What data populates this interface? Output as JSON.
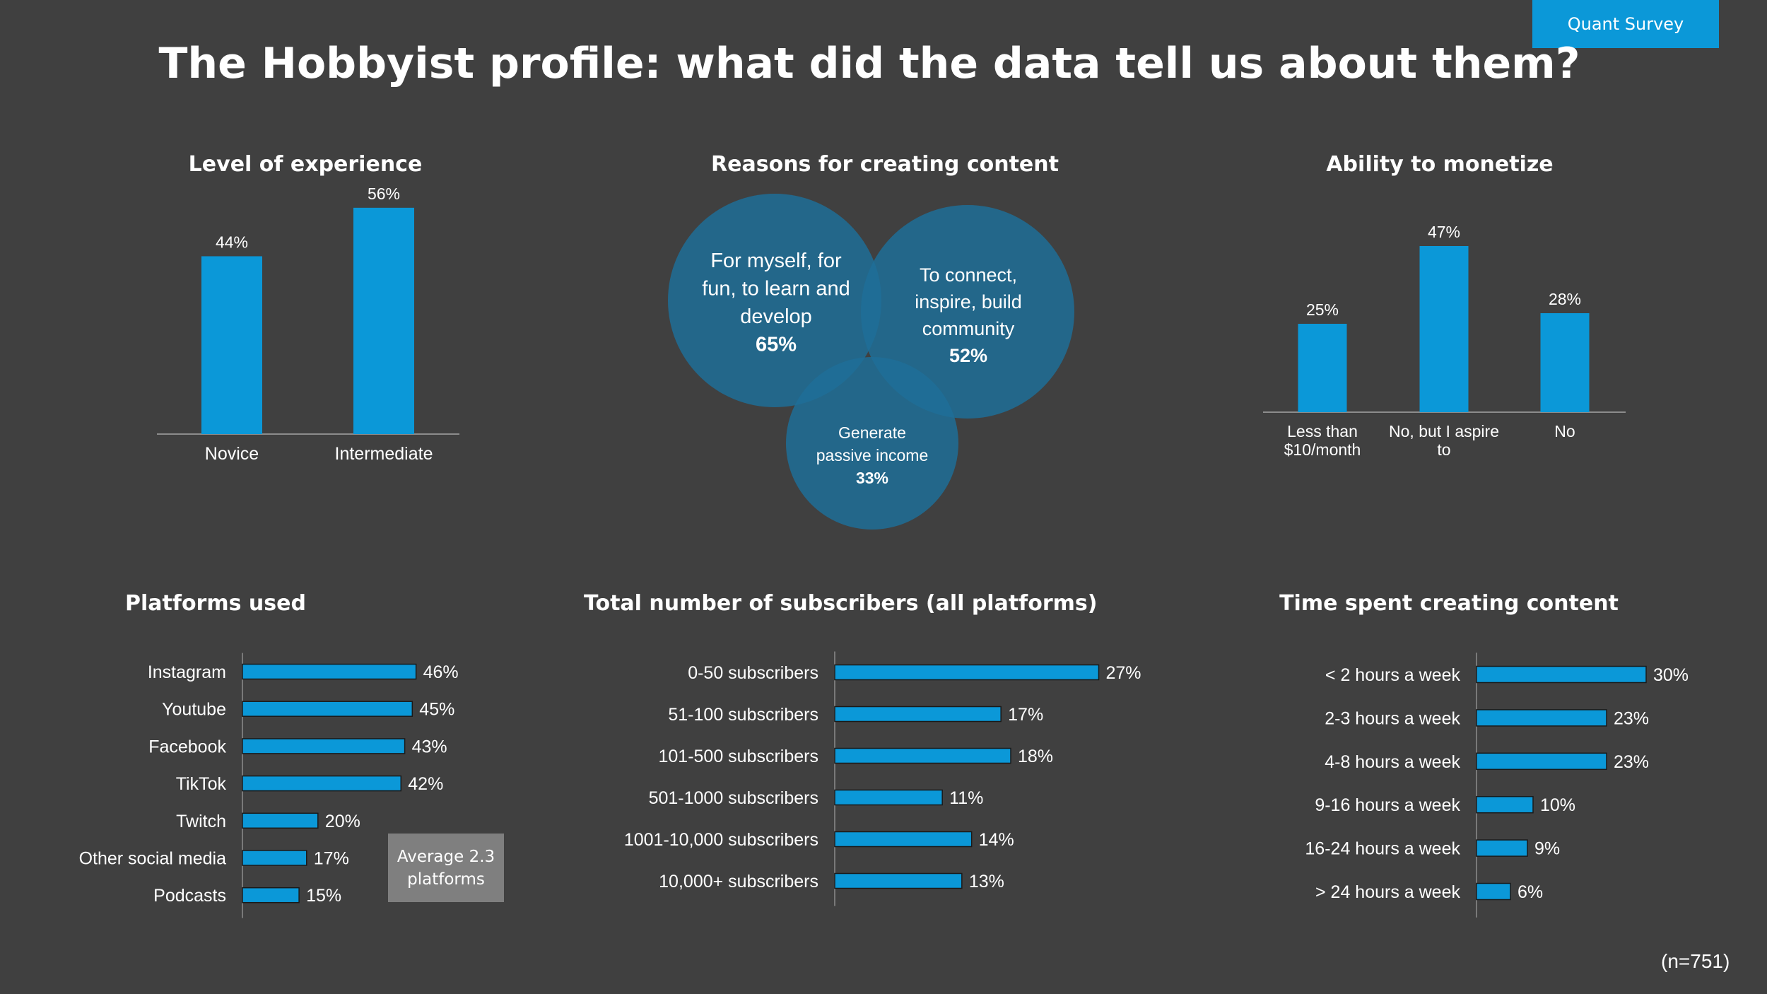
{
  "badge": "Quant Survey",
  "title": "The Hobbyist profile: what did the data tell us about them?",
  "sample_size": "(n=751)",
  "average_note": {
    "line1": "Average 2.3",
    "line2": "platforms"
  },
  "colors": {
    "background": "#404040",
    "bar": "#0b98d8",
    "venn": "#1f6f98",
    "axis": "#8c8c8c",
    "note_box": "#7f7f7f"
  },
  "chart_data": [
    {
      "id": "experience",
      "type": "bar",
      "title": "Level of experience",
      "categories": [
        "Novice",
        "Intermediate"
      ],
      "values": [
        44,
        56
      ],
      "value_labels": [
        "44%",
        "56%"
      ],
      "ylim": [
        0,
        60
      ]
    },
    {
      "id": "reasons",
      "type": "venn",
      "title": "Reasons for creating content",
      "sets": [
        {
          "lines": [
            "For myself, for",
            "fun, to learn and",
            "develop"
          ],
          "value": "65%"
        },
        {
          "lines": [
            "To connect,",
            "inspire, build",
            "community"
          ],
          "value": "52%"
        },
        {
          "lines": [
            "Generate",
            "passive income"
          ],
          "value": "33%"
        }
      ]
    },
    {
      "id": "monetize",
      "type": "bar",
      "title": "Ability to monetize",
      "categories": [
        [
          "Less than",
          "$10/month"
        ],
        [
          "No, but I aspire",
          "to"
        ],
        [
          "No"
        ]
      ],
      "values": [
        25,
        47,
        28
      ],
      "value_labels": [
        "25%",
        "47%",
        "28%"
      ],
      "ylim": [
        0,
        50
      ]
    },
    {
      "id": "platforms",
      "type": "hbar",
      "title": "Platforms used",
      "categories": [
        "Instagram",
        "Youtube",
        "Facebook",
        "TikTok",
        "Twitch",
        "Other social media",
        "Podcasts"
      ],
      "values": [
        46,
        45,
        43,
        42,
        20,
        17,
        15
      ],
      "value_labels": [
        "46%",
        "45%",
        "43%",
        "42%",
        "20%",
        "17%",
        "15%"
      ],
      "xlim": [
        0,
        50
      ]
    },
    {
      "id": "subscribers",
      "type": "hbar",
      "title": "Total number of subscribers (all platforms)",
      "categories": [
        "0-50 subscribers",
        "51-100 subscribers",
        "101-500 subscribers",
        "501-1000 subscribers",
        "1001-10,000 subscribers",
        "10,000+ subscribers"
      ],
      "values": [
        27,
        17,
        18,
        11,
        14,
        13
      ],
      "value_labels": [
        "27%",
        "17%",
        "18%",
        "11%",
        "14%",
        "13%"
      ],
      "xlim": [
        0,
        30
      ]
    },
    {
      "id": "time",
      "type": "hbar",
      "title": "Time spent creating content",
      "categories": [
        "< 2 hours a week",
        "2-3 hours a week",
        "4-8 hours a week",
        "9-16 hours a week",
        "16-24 hours a week",
        "> 24 hours a week"
      ],
      "values": [
        30,
        23,
        23,
        10,
        9,
        6
      ],
      "value_labels": [
        "30%",
        "23%",
        "23%",
        "10%",
        "9%",
        "6%"
      ],
      "xlim": [
        0,
        30
      ]
    }
  ]
}
